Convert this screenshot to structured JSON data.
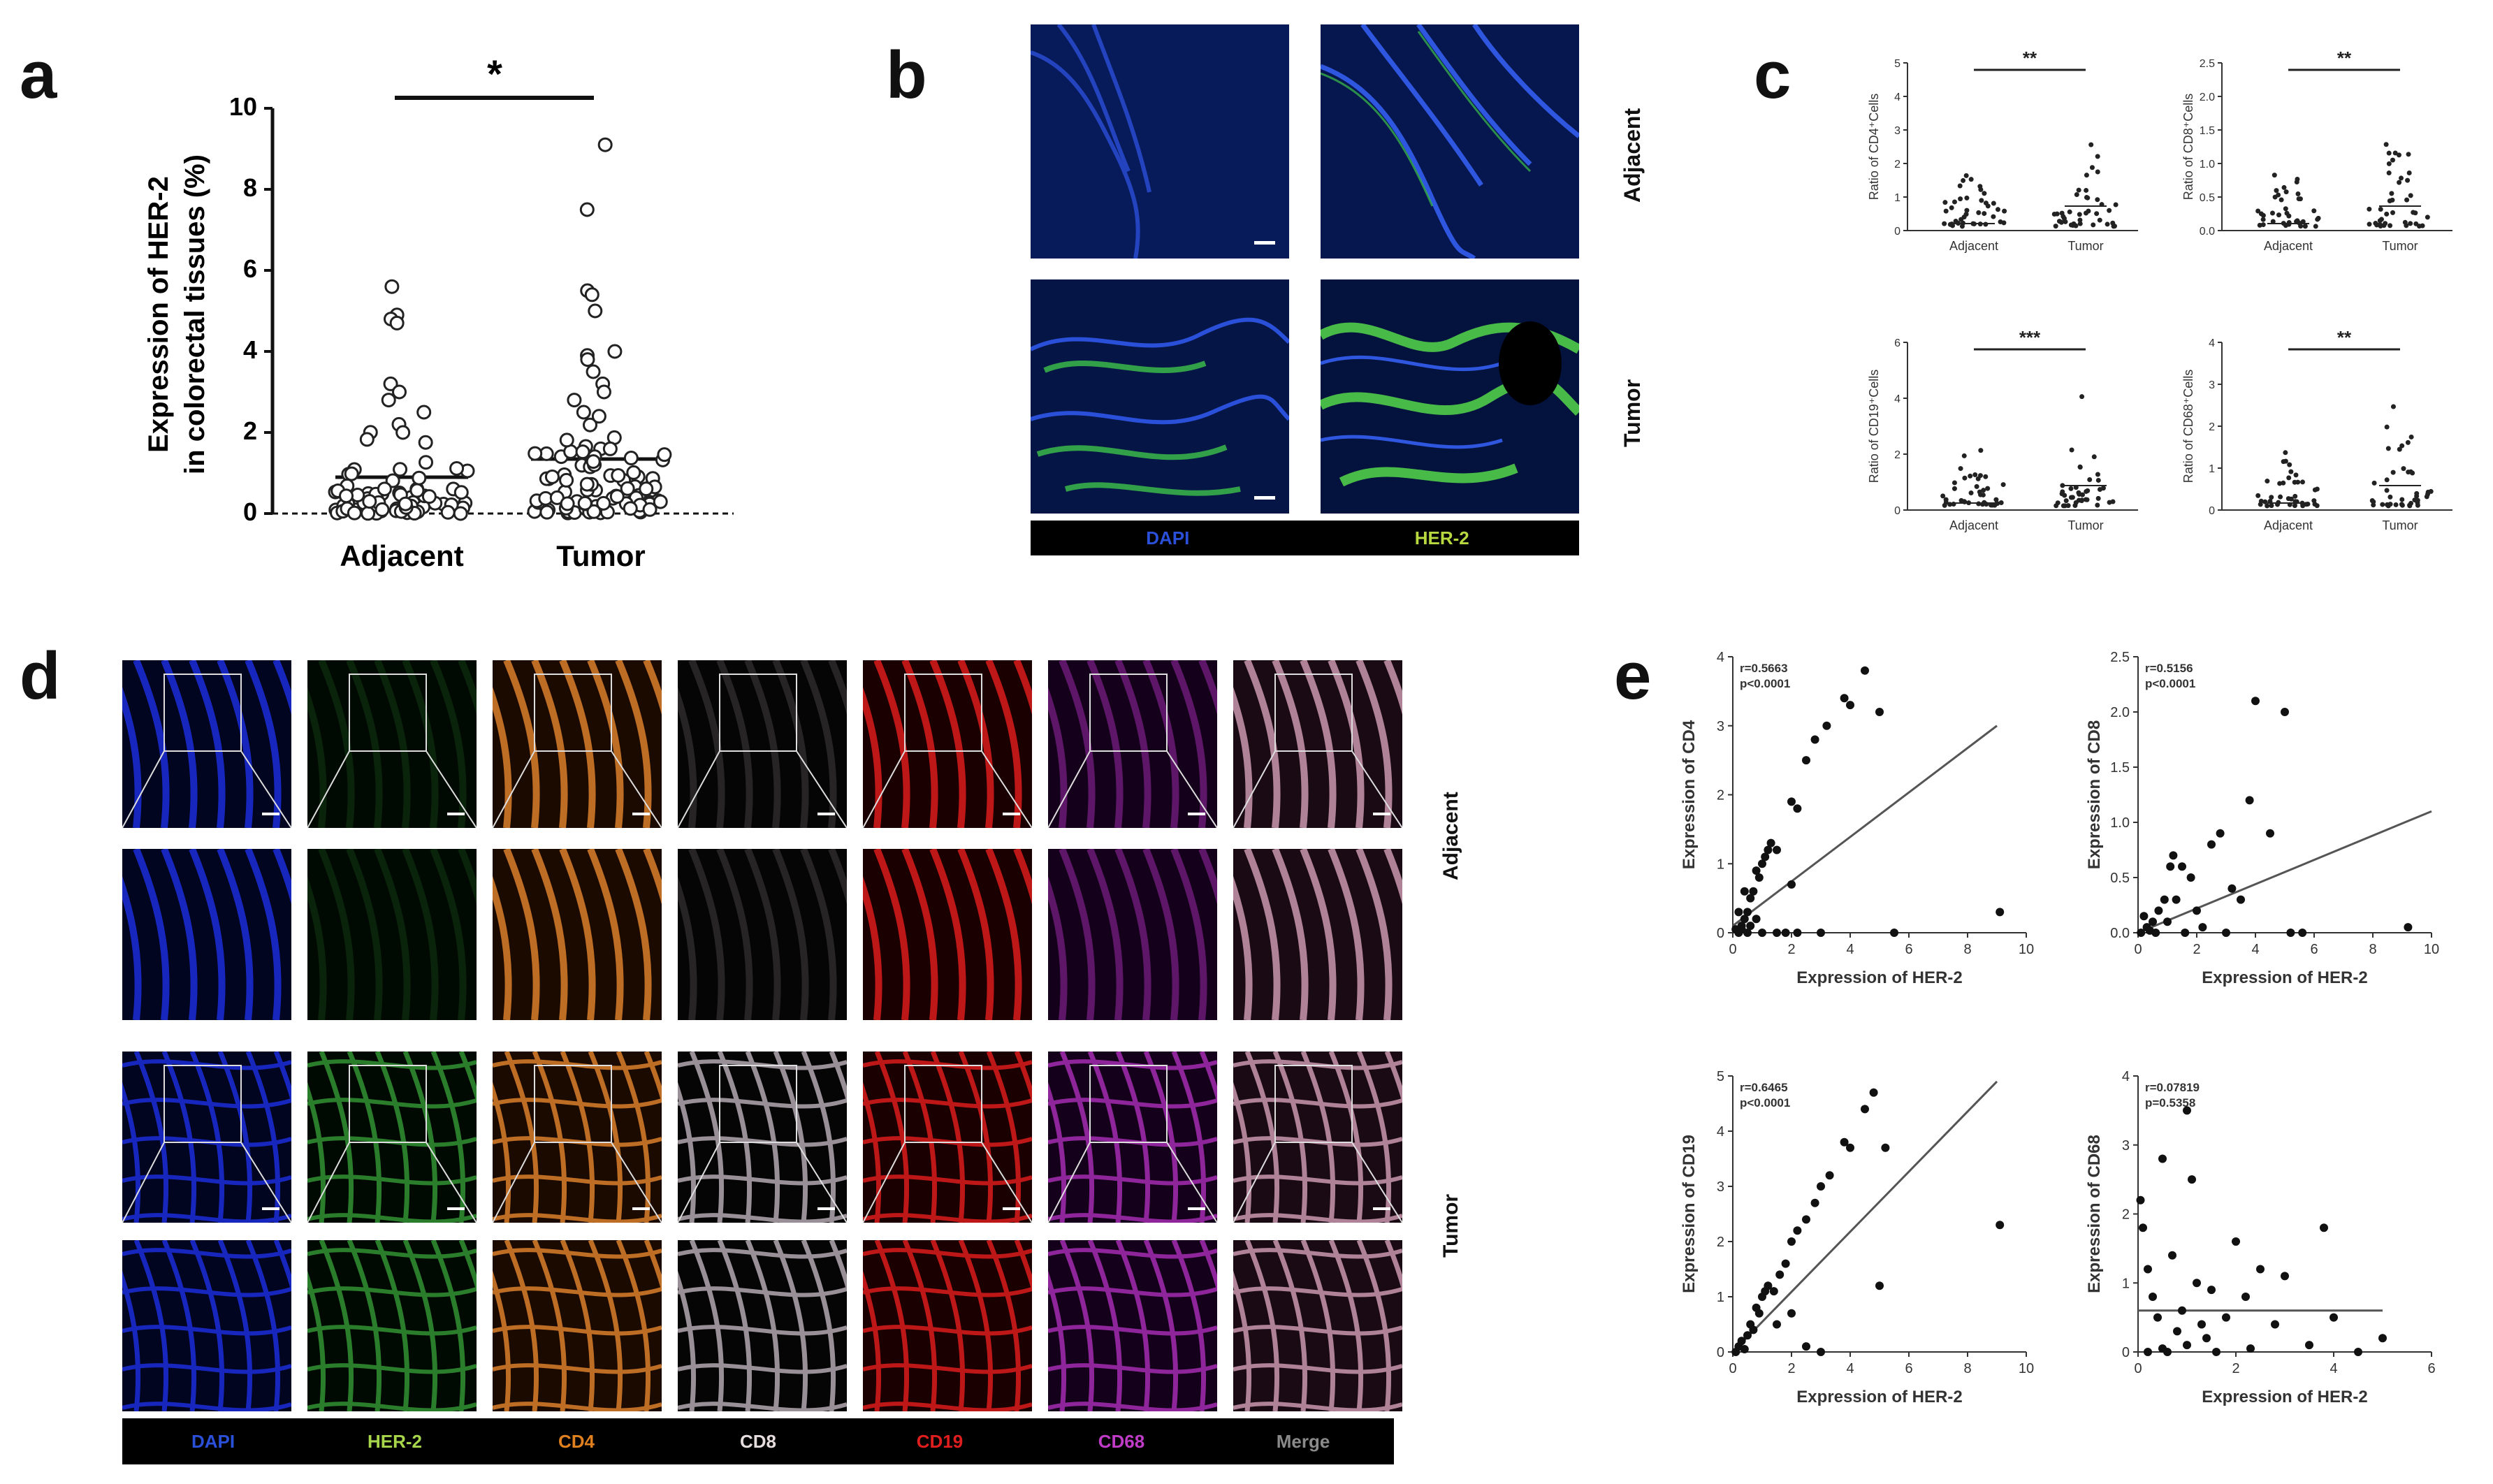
{
  "panels": {
    "a": "a",
    "b": "b",
    "c": "c",
    "d": "d",
    "e": "e"
  },
  "colors": {
    "dapi": "#1f3fd6",
    "her2": "#3cc34a",
    "cd4": "#e0801e",
    "cd8": "#d9d0d6",
    "cd19": "#e01e1e",
    "cd68": "#c03cc8",
    "merge": "#8a8a8a"
  },
  "panel_a": {
    "ylabel_line1": "Expression of HER-2",
    "ylabel_line2": "in colorectal tissues (%)",
    "significance": "*",
    "groups": [
      "Adjacent",
      "Tumor"
    ],
    "yticks": [
      "0",
      "2",
      "4",
      "6",
      "8",
      "10"
    ]
  },
  "panel_b": {
    "row_labels": [
      "Adjacent",
      "Tumor"
    ],
    "legend": [
      "DAPI",
      "HER-2"
    ]
  },
  "panel_c": {
    "xcats": [
      "Adjacent",
      "Tumor"
    ],
    "plots": [
      {
        "ylabel": "Ratio of CD4⁺Cells",
        "sig": "**",
        "yticks": [
          "0",
          "1",
          "2",
          "3",
          "4",
          "5"
        ]
      },
      {
        "ylabel": "Ratio of CD8⁺Cells",
        "sig": "**",
        "yticks": [
          "0.0",
          "0.5",
          "1.0",
          "1.5",
          "2.0",
          "2.5"
        ]
      },
      {
        "ylabel": "Ratio of CD19⁺Cells",
        "sig": "***",
        "yticks": [
          "0",
          "2",
          "4",
          "6"
        ]
      },
      {
        "ylabel": "Ratio of CD68⁺Cells",
        "sig": "**",
        "yticks": [
          "0",
          "1",
          "2",
          "3",
          "4"
        ]
      }
    ]
  },
  "panel_d": {
    "row_labels": [
      "Adjacent",
      "Tumor"
    ],
    "legend": [
      "DAPI",
      "HER-2",
      "CD4",
      "CD8",
      "CD19",
      "CD68",
      "Merge"
    ]
  },
  "chart_data": [
    {
      "type": "scatter",
      "ylabel": "Expression of CD4",
      "xlabel": "Expression of HER-2",
      "annotation_r": "r=0.5663",
      "annotation_p": "p<0.0001",
      "xlim": [
        0,
        10
      ],
      "ylim": [
        0,
        4
      ],
      "xticks": [
        "0",
        "2",
        "4",
        "6",
        "8",
        "10"
      ],
      "yticks": [
        "0",
        "1",
        "2",
        "3",
        "4"
      ],
      "fit": [
        [
          0,
          0.1
        ],
        [
          9,
          3.0
        ]
      ],
      "points": [
        [
          0.1,
          0.05
        ],
        [
          0.2,
          0.0
        ],
        [
          0.3,
          0.1
        ],
        [
          0.4,
          0.2
        ],
        [
          0.5,
          0.3
        ],
        [
          0.6,
          0.5
        ],
        [
          0.7,
          0.6
        ],
        [
          0.8,
          0.9
        ],
        [
          0.9,
          0.8
        ],
        [
          1.0,
          1.0
        ],
        [
          1.1,
          1.1
        ],
        [
          1.2,
          1.2
        ],
        [
          1.3,
          1.3
        ],
        [
          1.5,
          1.2
        ],
        [
          0.5,
          0.0
        ],
        [
          1.0,
          0.0
        ],
        [
          1.5,
          0.0
        ],
        [
          2.0,
          1.9
        ],
        [
          2.2,
          1.8
        ],
        [
          2.5,
          2.5
        ],
        [
          2.8,
          2.8
        ],
        [
          3.2,
          3.0
        ],
        [
          3.8,
          3.4
        ],
        [
          4.0,
          3.3
        ],
        [
          4.5,
          3.8
        ],
        [
          5.0,
          3.2
        ],
        [
          0.3,
          0.05
        ],
        [
          0.6,
          0.1
        ],
        [
          0.8,
          0.2
        ],
        [
          2.0,
          0.7
        ],
        [
          3.0,
          0.0
        ],
        [
          5.5,
          0.0
        ],
        [
          9.1,
          0.3
        ],
        [
          0.2,
          0.3
        ],
        [
          0.4,
          0.6
        ],
        [
          1.8,
          0.0
        ],
        [
          2.2,
          0.0
        ]
      ]
    },
    {
      "type": "scatter",
      "ylabel": "Expression of CD8",
      "xlabel": "Expression of HER-2",
      "annotation_r": "r=0.5156",
      "annotation_p": "p<0.0001",
      "xlim": [
        0,
        10
      ],
      "ylim": [
        0,
        2.5
      ],
      "xticks": [
        "0",
        "2",
        "4",
        "6",
        "8",
        "10"
      ],
      "yticks": [
        "0.0",
        "0.5",
        "1.0",
        "1.5",
        "2.0",
        "2.5"
      ],
      "fit": [
        [
          0,
          0.0
        ],
        [
          10,
          1.1
        ]
      ],
      "points": [
        [
          0.1,
          0.0
        ],
        [
          0.3,
          0.05
        ],
        [
          0.5,
          0.1
        ],
        [
          0.7,
          0.2
        ],
        [
          0.9,
          0.3
        ],
        [
          1.0,
          0.1
        ],
        [
          1.1,
          0.6
        ],
        [
          1.2,
          0.7
        ],
        [
          1.5,
          0.6
        ],
        [
          1.8,
          0.5
        ],
        [
          2.0,
          0.2
        ],
        [
          2.5,
          0.8
        ],
        [
          2.8,
          0.9
        ],
        [
          3.2,
          0.4
        ],
        [
          3.5,
          0.3
        ],
        [
          3.8,
          1.2
        ],
        [
          4.0,
          2.1
        ],
        [
          4.5,
          0.9
        ],
        [
          5.0,
          2.0
        ],
        [
          5.2,
          0.0
        ],
        [
          5.6,
          0.0
        ],
        [
          9.2,
          0.05
        ],
        [
          0.2,
          0.15
        ],
        [
          0.4,
          0.02
        ],
        [
          0.6,
          0.0
        ],
        [
          1.3,
          0.3
        ],
        [
          1.6,
          0.0
        ],
        [
          2.2,
          0.05
        ],
        [
          3.0,
          0.0
        ]
      ]
    },
    {
      "type": "scatter",
      "ylabel": "Expression of CD19",
      "xlabel": "Expression of HER-2",
      "annotation_r": "r=0.6465",
      "annotation_p": "p<0.0001",
      "xlim": [
        0,
        10
      ],
      "ylim": [
        0,
        5
      ],
      "xticks": [
        "0",
        "2",
        "4",
        "6",
        "8",
        "10"
      ],
      "yticks": [
        "0",
        "1",
        "2",
        "3",
        "4",
        "5"
      ],
      "fit": [
        [
          0,
          0.0
        ],
        [
          9,
          4.9
        ]
      ],
      "points": [
        [
          0.1,
          0.0
        ],
        [
          0.2,
          0.1
        ],
        [
          0.3,
          0.2
        ],
        [
          0.5,
          0.3
        ],
        [
          0.6,
          0.5
        ],
        [
          0.7,
          0.4
        ],
        [
          0.8,
          0.8
        ],
        [
          0.9,
          0.7
        ],
        [
          1.0,
          1.0
        ],
        [
          1.1,
          1.1
        ],
        [
          1.2,
          1.2
        ],
        [
          1.4,
          1.1
        ],
        [
          1.6,
          1.4
        ],
        [
          1.8,
          1.6
        ],
        [
          2.0,
          2.0
        ],
        [
          2.2,
          2.2
        ],
        [
          2.5,
          2.4
        ],
        [
          2.8,
          2.7
        ],
        [
          3.0,
          3.0
        ],
        [
          3.3,
          3.2
        ],
        [
          3.8,
          3.8
        ],
        [
          4.0,
          3.7
        ],
        [
          4.5,
          4.4
        ],
        [
          4.8,
          4.7
        ],
        [
          5.0,
          1.2
        ],
        [
          5.2,
          3.7
        ],
        [
          9.1,
          2.3
        ],
        [
          1.5,
          0.5
        ],
        [
          2.0,
          0.7
        ],
        [
          2.5,
          0.1
        ],
        [
          3.0,
          0.0
        ],
        [
          0.4,
          0.05
        ]
      ]
    },
    {
      "type": "scatter",
      "ylabel": "Expression of CD68",
      "xlabel": "Expression of HER-2",
      "annotation_r": "r=0.07819",
      "annotation_p": "p=0.5358",
      "xlim": [
        0,
        6
      ],
      "ylim": [
        0,
        4
      ],
      "xticks": [
        "0",
        "2",
        "4",
        "6"
      ],
      "yticks": [
        "0",
        "1",
        "2",
        "3",
        "4"
      ],
      "fit": [
        [
          0,
          0.6
        ],
        [
          5,
          0.6
        ]
      ],
      "points": [
        [
          0.05,
          2.2
        ],
        [
          0.1,
          1.8
        ],
        [
          0.2,
          1.2
        ],
        [
          0.3,
          0.8
        ],
        [
          0.4,
          0.5
        ],
        [
          0.5,
          2.8
        ],
        [
          0.6,
          0.0
        ],
        [
          0.7,
          1.4
        ],
        [
          0.8,
          0.3
        ],
        [
          0.9,
          0.6
        ],
        [
          1.0,
          3.5
        ],
        [
          1.1,
          2.5
        ],
        [
          1.2,
          1.0
        ],
        [
          1.3,
          0.4
        ],
        [
          1.4,
          0.2
        ],
        [
          1.5,
          0.9
        ],
        [
          1.8,
          0.5
        ],
        [
          2.0,
          1.6
        ],
        [
          2.2,
          0.8
        ],
        [
          2.5,
          1.2
        ],
        [
          2.8,
          0.4
        ],
        [
          3.0,
          1.1
        ],
        [
          3.5,
          0.1
        ],
        [
          3.8,
          1.8
        ],
        [
          4.0,
          0.5
        ],
        [
          4.5,
          0.0
        ],
        [
          5.0,
          0.2
        ],
        [
          0.2,
          0.0
        ],
        [
          0.5,
          0.05
        ],
        [
          1.0,
          0.1
        ],
        [
          1.6,
          0.0
        ],
        [
          2.3,
          0.05
        ]
      ]
    }
  ]
}
